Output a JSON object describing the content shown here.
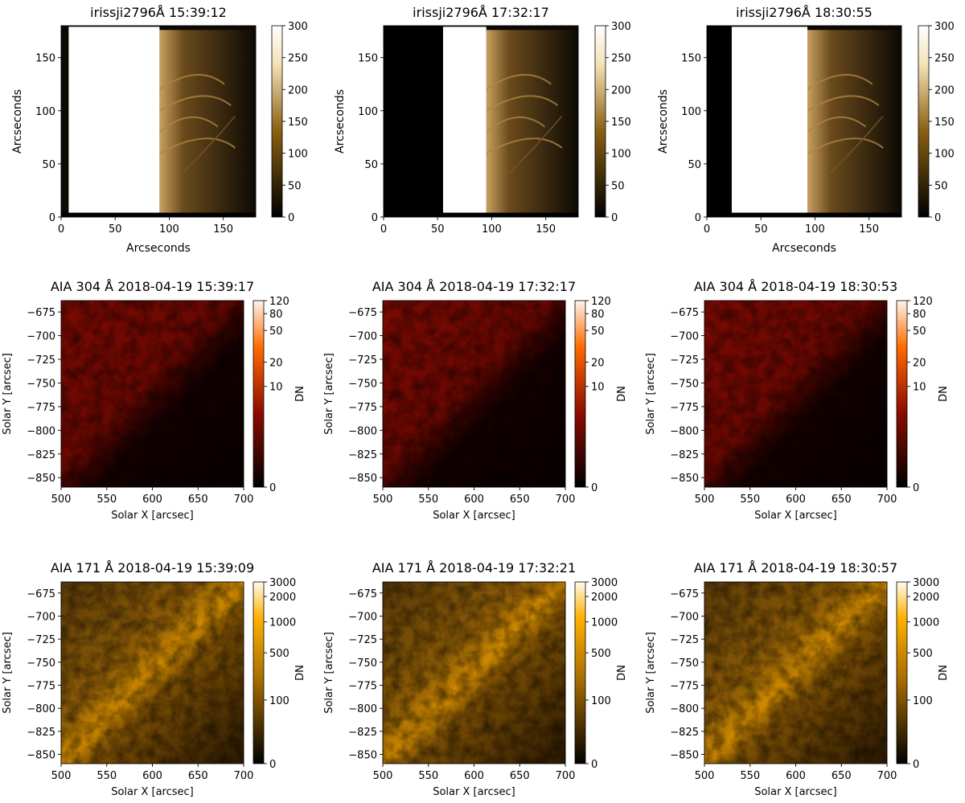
{
  "figure": {
    "panels": [
      {
        "row": "iris",
        "title": "irissji2796Å 15:39:12",
        "xlabel": "Arcseconds",
        "ylabel": "Arcseconds",
        "xticks": [
          "0",
          "50",
          "100",
          "150"
        ],
        "yticks": [
          "0",
          "50",
          "100",
          "150"
        ],
        "colorbar": {
          "label": "",
          "ticks": [
            "0",
            "50",
            "100",
            "150",
            "200",
            "250",
            "300"
          ],
          "range": [
            0,
            300
          ],
          "cmap": "iris"
        },
        "image": {
          "saturated_start_arcsec": 7,
          "saturated_end_arcsec": 91,
          "left_pad_arcsec": 0
        }
      },
      {
        "row": "iris",
        "title": "irissji2796Å 17:32:17",
        "xlabel": "",
        "ylabel": "Arcseconds",
        "xticks": [
          "0",
          "50",
          "100",
          "150"
        ],
        "yticks": [
          "0",
          "50",
          "100",
          "150"
        ],
        "colorbar": {
          "label": "",
          "ticks": [
            "0",
            "50",
            "100",
            "150",
            "200",
            "250",
            "300"
          ],
          "range": [
            0,
            300
          ],
          "cmap": "iris"
        },
        "image": {
          "saturated_start_arcsec": 55,
          "saturated_end_arcsec": 95,
          "left_pad_arcsec": 55
        }
      },
      {
        "row": "iris",
        "title": "irissji2796Å 18:30:55",
        "xlabel": "Arcseconds",
        "ylabel": "Arcseconds",
        "xticks": [
          "0",
          "50",
          "100",
          "150"
        ],
        "yticks": [
          "0",
          "50",
          "100",
          "150"
        ],
        "colorbar": {
          "label": "",
          "ticks": [
            "0",
            "50",
            "100",
            "150",
            "200",
            "250",
            "300"
          ],
          "range": [
            0,
            300
          ],
          "cmap": "iris"
        },
        "image": {
          "saturated_start_arcsec": 23,
          "saturated_end_arcsec": 93,
          "left_pad_arcsec": 23
        }
      },
      {
        "row": "aia304",
        "title": "AIA 304 Å 2018-04-19 15:39:17",
        "xlabel": "Solar X [arcsec]",
        "ylabel": "Solar Y [arcsec]",
        "xticks": [
          "500",
          "550",
          "600",
          "650",
          "700"
        ],
        "yticks": [
          "−675",
          "−700",
          "−725",
          "−750",
          "−775",
          "−800",
          "−825",
          "−850"
        ],
        "colorbar": {
          "label": "DN",
          "ticks": [
            "0",
            "10",
            "20",
            "50",
            "80",
            "120"
          ],
          "cmap": "304"
        }
      },
      {
        "row": "aia304",
        "title": "AIA 304 Å 2018-04-19 17:32:17",
        "xlabel": "Solar X [arcsec]",
        "ylabel": "Solar Y [arcsec]",
        "xticks": [
          "500",
          "550",
          "600",
          "650",
          "700"
        ],
        "yticks": [
          "−675",
          "−700",
          "−725",
          "−750",
          "−775",
          "−800",
          "−825",
          "−850"
        ],
        "colorbar": {
          "label": "DN",
          "ticks": [
            "0",
            "10",
            "20",
            "50",
            "80",
            "120"
          ],
          "cmap": "304"
        }
      },
      {
        "row": "aia304",
        "title": "AIA 304 Å 2018-04-19 18:30:53",
        "xlabel": "Solar X [arcsec]",
        "ylabel": "Solar Y [arcsec]",
        "xticks": [
          "500",
          "550",
          "600",
          "650",
          "700"
        ],
        "yticks": [
          "−675",
          "−700",
          "−725",
          "−750",
          "−775",
          "−800",
          "−825",
          "−850"
        ],
        "colorbar": {
          "label": "DN",
          "ticks": [
            "0",
            "10",
            "20",
            "50",
            "80",
            "120"
          ],
          "cmap": "304"
        }
      },
      {
        "row": "aia171",
        "title": "AIA 171 Å 2018-04-19 15:39:09",
        "xlabel": "Solar X [arcsec]",
        "ylabel": "Solar Y [arcsec]",
        "xticks": [
          "500",
          "550",
          "600",
          "650",
          "700"
        ],
        "yticks": [
          "−675",
          "−700",
          "−725",
          "−750",
          "−775",
          "−800",
          "−825",
          "−850"
        ],
        "colorbar": {
          "label": "DN",
          "ticks": [
            "0",
            "100",
            "500",
            "1000",
            "2000",
            "3000"
          ],
          "cmap": "171"
        }
      },
      {
        "row": "aia171",
        "title": "AIA 171 Å 2018-04-19 17:32:21",
        "xlabel": "Solar X [arcsec]",
        "ylabel": "Solar Y [arcsec]",
        "xticks": [
          "500",
          "550",
          "600",
          "650",
          "700"
        ],
        "yticks": [
          "−675",
          "−700",
          "−725",
          "−750",
          "−775",
          "−800",
          "−825",
          "−850"
        ],
        "colorbar": {
          "label": "DN",
          "ticks": [
            "0",
            "100",
            "500",
            "1000",
            "2000",
            "3000"
          ],
          "cmap": "171"
        }
      },
      {
        "row": "aia171",
        "title": "AIA 171 Å 2018-04-19 18:30:57",
        "xlabel": "Solar X [arcsec]",
        "ylabel": "Solar Y [arcsec]",
        "xticks": [
          "500",
          "550",
          "600",
          "650",
          "700"
        ],
        "yticks": [
          "−675",
          "−700",
          "−725",
          "−750",
          "−775",
          "−800",
          "−825",
          "−850"
        ],
        "colorbar": {
          "label": "DN",
          "ticks": [
            "0",
            "100",
            "500",
            "1000",
            "2000",
            "3000"
          ],
          "cmap": "171"
        }
      }
    ],
    "colors": {
      "iris_dark": "#000000",
      "iris_mid": "#8a6012",
      "iris_light": "#f4e2b8",
      "iris_white": "#ffffff",
      "aia304_dark": "#000000",
      "aia304_mid": "#8c0c00",
      "aia304_bright": "#ff6a00",
      "aia304_white": "#fff4ea",
      "aia171_dark": "#000000",
      "aia171_mid": "#a36a00",
      "aia171_bright": "#ffb000",
      "aia171_white": "#fffbea"
    }
  }
}
